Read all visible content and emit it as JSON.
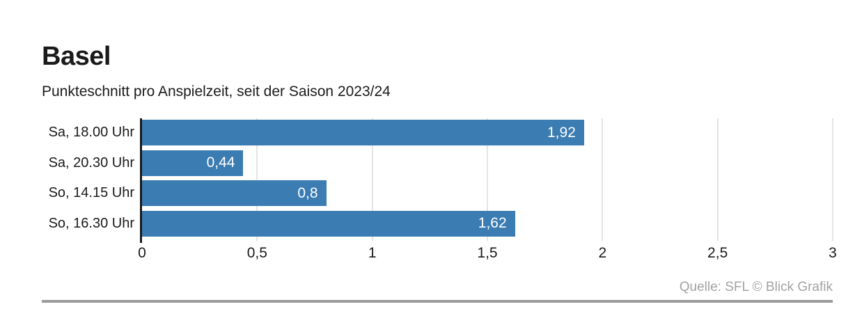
{
  "header": {
    "title": "Basel",
    "subtitle": "Punkteschnitt pro Anspielzeit, seit der Saison 2023/24"
  },
  "chart_data": {
    "type": "bar",
    "orientation": "horizontal",
    "title": "Basel",
    "subtitle": "Punkteschnitt pro Anspielzeit, seit der Saison 2023/24",
    "categories": [
      "Sa, 18.00 Uhr",
      "Sa, 20.30 Uhr",
      "So, 14.15 Uhr",
      "So, 16.30 Uhr"
    ],
    "values": [
      1.92,
      0.44,
      0.8,
      1.62
    ],
    "value_labels": [
      "1,92",
      "0,44",
      "0,8",
      "1,62"
    ],
    "xlim": [
      0,
      3
    ],
    "x_ticks": [
      {
        "value": 0,
        "label": "0"
      },
      {
        "value": 0.5,
        "label": "0,5"
      },
      {
        "value": 1,
        "label": "1"
      },
      {
        "value": 1.5,
        "label": "1,5"
      },
      {
        "value": 2,
        "label": "2"
      },
      {
        "value": 2.5,
        "label": "2,5"
      },
      {
        "value": 3,
        "label": "3"
      }
    ],
    "grid": true,
    "legend": false,
    "colors": {
      "bar": "#3b7cb2",
      "gridline": "#e4e4e4",
      "axis": "#1a1a1a",
      "value_text": "#ffffff",
      "source_text": "#a3a3a3",
      "bottom_rule": "#9b9b9b"
    }
  },
  "footer": {
    "source": "Quelle: SFL © Blick Grafik"
  }
}
